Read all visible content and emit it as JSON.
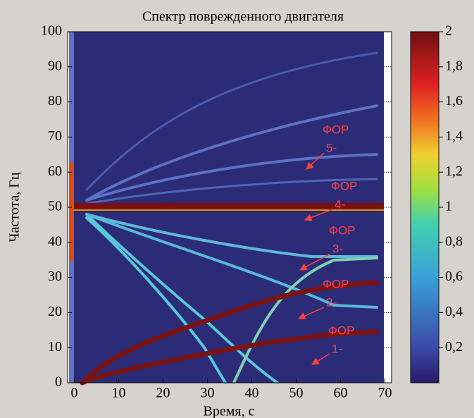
{
  "chart_data": {
    "type": "spectrogram",
    "title": "Спектр поврежденного двигателя",
    "xlabel": "Время, с",
    "ylabel": "Частота, Гц",
    "xlim": [
      -1.5,
      71.5
    ],
    "xticks": [
      0,
      10,
      20,
      30,
      40,
      50,
      60,
      70
    ],
    "ylim": [
      0,
      100
    ],
    "yticks": [
      0,
      10,
      20,
      30,
      40,
      50,
      60,
      70,
      80,
      90,
      100
    ],
    "clim": [
      0,
      2
    ],
    "cticks": [
      {
        "value": 0.2,
        "label": "0,2"
      },
      {
        "value": 0.4,
        "label": "0,4"
      },
      {
        "value": 0.6,
        "label": "0,6"
      },
      {
        "value": 0.8,
        "label": "0,8"
      },
      1,
      {
        "value": 1.2,
        "label": "1,2"
      },
      {
        "value": 1.4,
        "label": "1,4"
      },
      {
        "value": 1.6,
        "label": "1,6"
      },
      {
        "value": 1.8,
        "label": "1,8"
      },
      2
    ],
    "annotations": [
      {
        "lines": [
          "ФОР",
          "5-"
        ]
      },
      {
        "lines": [
          "ФОР",
          "4-"
        ]
      },
      {
        "lines": [
          "ФОР",
          "3-"
        ]
      },
      {
        "lines": [
          "ФОР",
          "2-"
        ]
      },
      {
        "lines": [
          "ФОР",
          "1-"
        ]
      }
    ]
  }
}
